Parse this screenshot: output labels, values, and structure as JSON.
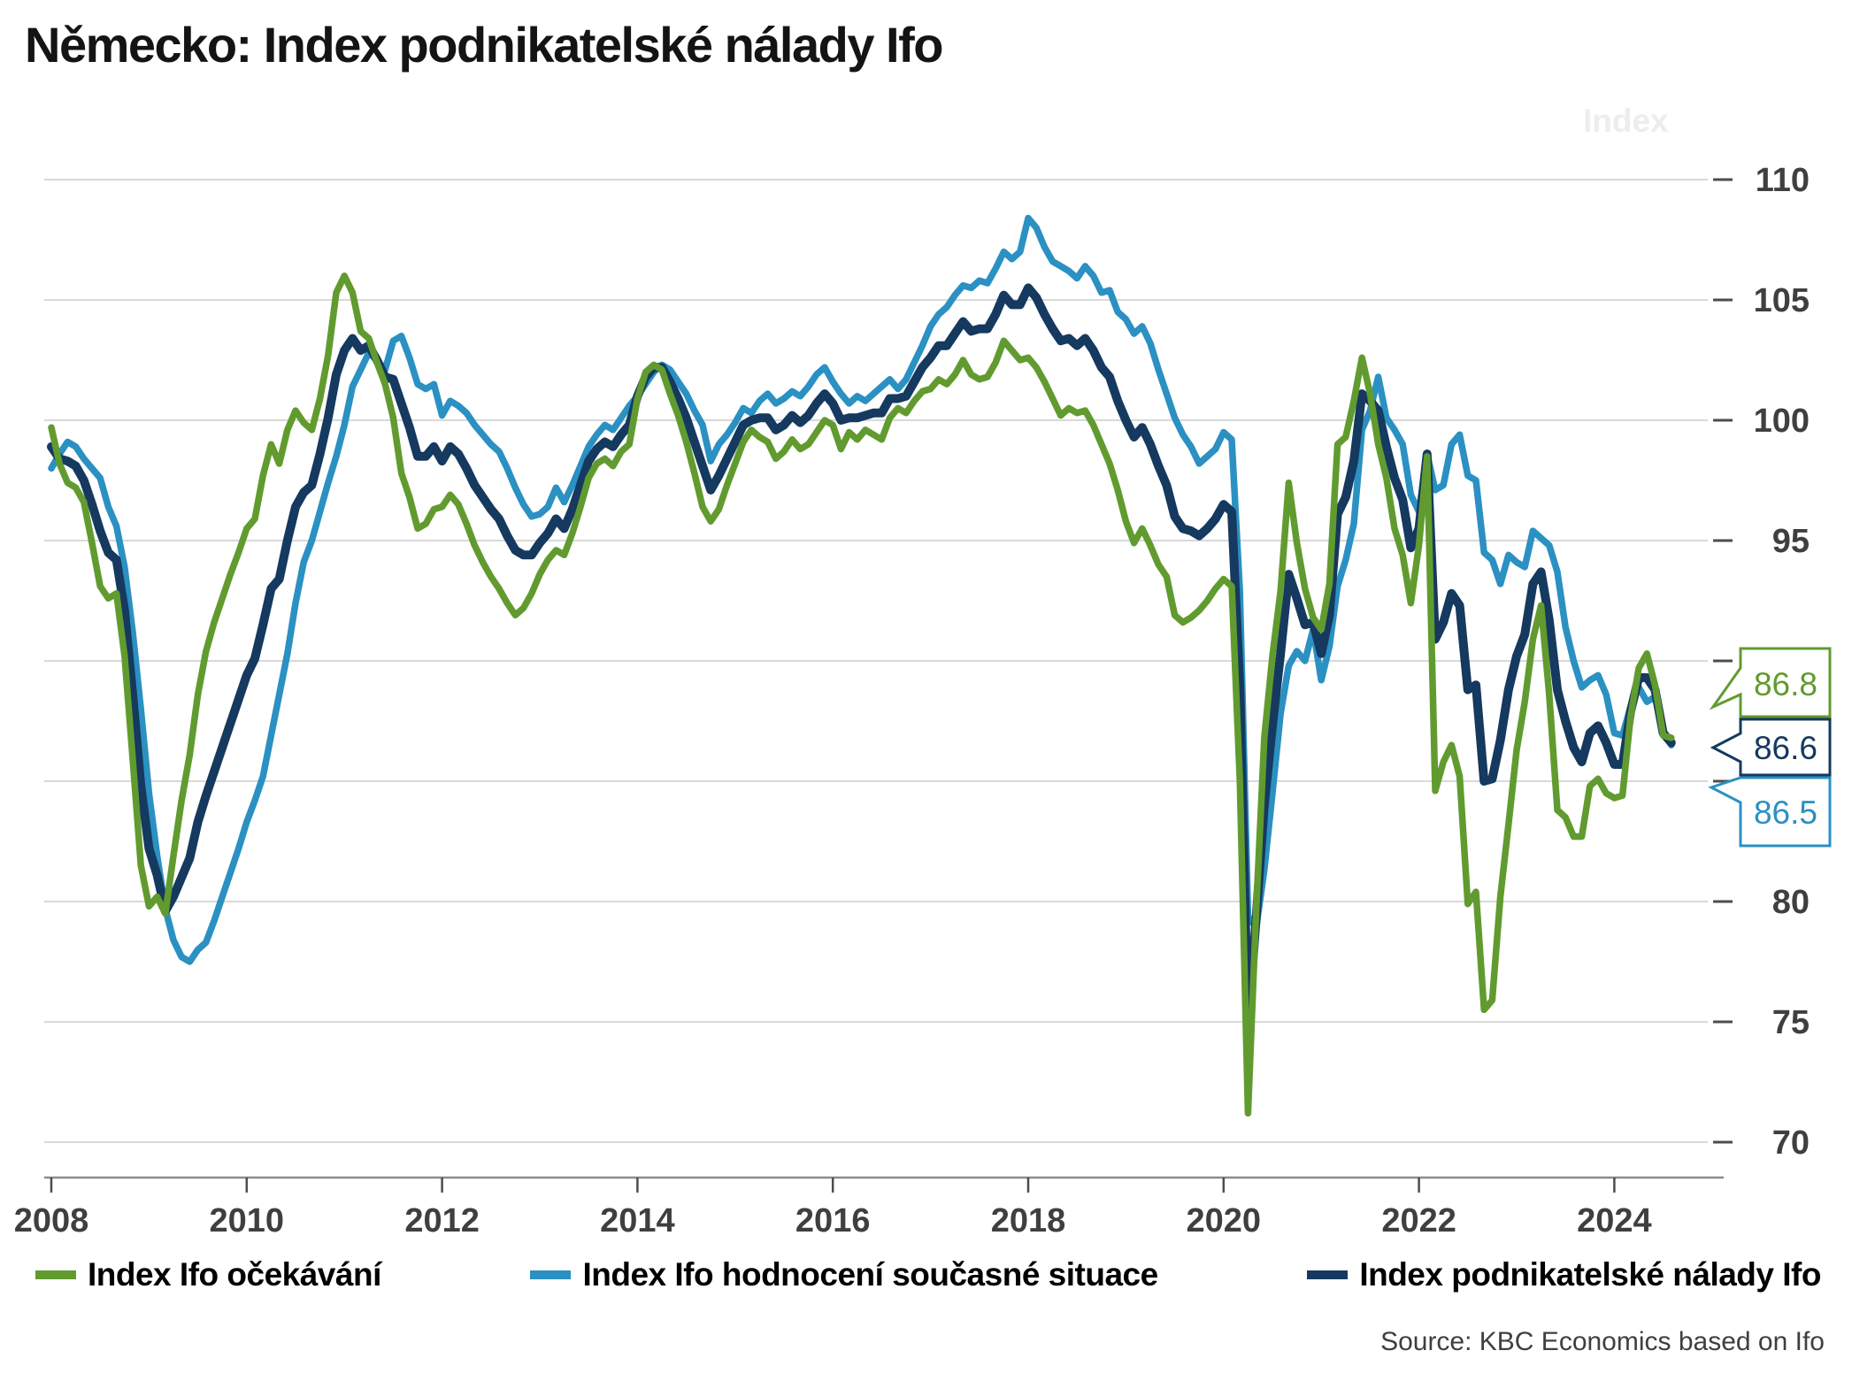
{
  "title": "Německo: Index podnikatelské nálady Ifo",
  "axis_unit_label": "Index",
  "source_note": "Source: KBC Economics based on Ifo",
  "colors": {
    "expectations": "#619b2f",
    "situation": "#2b90c2",
    "climate": "#15395f",
    "grid": "#d9d9d9",
    "axis": "#8c8c8c",
    "tick": "#4d4d4d",
    "label": "#3f3f3f",
    "title": "#141414",
    "unit": "#ededed"
  },
  "legend": {
    "items": [
      {
        "id": "expectations",
        "label": "Index Ifo očekávání"
      },
      {
        "id": "situation",
        "label": "Index Ifo hodnocení současné situace"
      },
      {
        "id": "climate",
        "label": "Index podnikatelské nálady Ifo"
      }
    ]
  },
  "end_labels": {
    "expectations": "86.8",
    "climate": "86.6",
    "situation": "86.5"
  },
  "chart_data": {
    "type": "line",
    "title": "Německo: Index podnikatelské nálady Ifo",
    "ylabel": "Index",
    "x_unit": "month",
    "x_start": "2008-01",
    "x_end": "2024-08",
    "x_ticks": [
      2008,
      2010,
      2012,
      2014,
      2016,
      2018,
      2020,
      2022,
      2024
    ],
    "ylim": [
      70,
      110
    ],
    "y_ticks": [
      70,
      75,
      80,
      85,
      90,
      95,
      100,
      105,
      110
    ],
    "grid": "horizontal",
    "legend_position": "bottom",
    "series": [
      {
        "id": "expectations",
        "name": "Index Ifo očekávání",
        "color": "#619b2f",
        "last_value": 86.8,
        "values": [
          99.7,
          98.2,
          97.4,
          97.2,
          96.6,
          94.9,
          93.1,
          92.6,
          92.8,
          90.2,
          85.9,
          81.5,
          79.8,
          80.2,
          79.5,
          81.9,
          84.2,
          86.1,
          88.6,
          90.4,
          91.6,
          92.6,
          93.6,
          94.5,
          95.5,
          95.9,
          97.7,
          99.0,
          98.2,
          99.6,
          100.4,
          99.9,
          99.6,
          100.9,
          102.7,
          105.3,
          106.0,
          105.3,
          103.7,
          103.4,
          102.4,
          101.5,
          100.1,
          97.8,
          96.8,
          95.5,
          95.7,
          96.3,
          96.4,
          96.9,
          96.5,
          95.7,
          94.8,
          94.1,
          93.5,
          93.0,
          92.4,
          91.9,
          92.2,
          92.8,
          93.6,
          94.2,
          94.6,
          94.4,
          95.3,
          96.4,
          97.6,
          98.2,
          98.4,
          98.1,
          98.7,
          99.0,
          100.9,
          102.0,
          102.3,
          102.1,
          101.1,
          100.2,
          99.1,
          97.8,
          96.4,
          95.8,
          96.3,
          97.3,
          98.2,
          99.1,
          99.6,
          99.3,
          99.1,
          98.4,
          98.7,
          99.2,
          98.8,
          99.0,
          99.5,
          100.0,
          99.8,
          98.8,
          99.5,
          99.2,
          99.6,
          99.4,
          99.2,
          100.1,
          100.5,
          100.3,
          100.8,
          101.2,
          101.3,
          101.7,
          101.5,
          101.9,
          102.5,
          101.9,
          101.7,
          101.8,
          102.4,
          103.3,
          102.9,
          102.5,
          102.6,
          102.2,
          101.6,
          100.9,
          100.2,
          100.5,
          100.3,
          100.4,
          99.8,
          99.0,
          98.2,
          97.1,
          95.8,
          94.9,
          95.5,
          94.8,
          94.0,
          93.5,
          91.9,
          91.6,
          91.8,
          92.1,
          92.5,
          93.0,
          93.4,
          93.1,
          85.0,
          71.2,
          79.6,
          86.8,
          90.2,
          92.9,
          97.4,
          94.9,
          93.0,
          91.8,
          91.3,
          93.2,
          99.0,
          99.3,
          100.8,
          102.6,
          101.1,
          99.0,
          97.6,
          95.5,
          94.4,
          92.4,
          94.8,
          98.5,
          84.6,
          85.8,
          86.5,
          85.2,
          79.9,
          80.4,
          75.5,
          75.9,
          80.2,
          83.2,
          86.3,
          88.3,
          90.9,
          92.3,
          88.6,
          83.8,
          83.5,
          82.7,
          82.7,
          84.8,
          85.1,
          84.5,
          84.3,
          84.4,
          87.7,
          89.7,
          90.3,
          89.0,
          86.9,
          86.8
        ]
      },
      {
        "id": "situation",
        "name": "Index Ifo hodnocení současné situace",
        "color": "#2b90c2",
        "last_value": 86.5,
        "values": [
          98.0,
          98.6,
          99.1,
          98.9,
          98.4,
          98.0,
          97.6,
          96.4,
          95.6,
          93.9,
          91.2,
          88.0,
          84.5,
          81.9,
          79.7,
          78.4,
          77.7,
          77.5,
          78.0,
          78.3,
          79.2,
          80.2,
          81.2,
          82.2,
          83.3,
          84.2,
          85.2,
          86.9,
          88.6,
          90.3,
          92.4,
          94.1,
          95.0,
          96.2,
          97.4,
          98.5,
          99.8,
          101.4,
          102.1,
          102.8,
          102.5,
          102.1,
          103.3,
          103.5,
          102.6,
          101.5,
          101.3,
          101.5,
          100.2,
          100.8,
          100.6,
          100.3,
          99.8,
          99.4,
          99.0,
          98.7,
          98.0,
          97.2,
          96.5,
          96.0,
          96.1,
          96.4,
          97.2,
          96.6,
          97.3,
          98.1,
          98.9,
          99.4,
          99.8,
          99.6,
          100.1,
          100.6,
          101.0,
          101.5,
          102.0,
          102.3,
          102.1,
          101.6,
          101.1,
          100.4,
          99.8,
          98.3,
          99.0,
          99.4,
          99.9,
          100.5,
          100.3,
          100.8,
          101.1,
          100.7,
          100.9,
          101.2,
          101.0,
          101.4,
          101.9,
          102.2,
          101.6,
          101.1,
          100.7,
          101.0,
          100.8,
          101.1,
          101.4,
          101.7,
          101.3,
          101.7,
          102.4,
          103.1,
          103.9,
          104.4,
          104.7,
          105.2,
          105.6,
          105.5,
          105.8,
          105.7,
          106.3,
          107.0,
          106.7,
          107.0,
          108.4,
          108.0,
          107.2,
          106.6,
          106.4,
          106.2,
          105.9,
          106.4,
          106.0,
          105.3,
          105.4,
          104.5,
          104.2,
          103.6,
          103.9,
          103.2,
          102.1,
          101.1,
          100.1,
          99.4,
          98.9,
          98.2,
          98.5,
          98.8,
          99.5,
          99.2,
          92.9,
          79.4,
          78.9,
          81.3,
          84.5,
          87.8,
          89.8,
          90.4,
          90.0,
          91.3,
          89.2,
          90.6,
          93.1,
          94.2,
          95.7,
          99.6,
          100.4,
          101.8,
          100.1,
          99.6,
          99.0,
          96.9,
          96.2,
          98.6,
          97.1,
          97.3,
          99.0,
          99.4,
          97.7,
          97.5,
          94.5,
          94.2,
          93.2,
          94.4,
          94.1,
          93.9,
          95.4,
          95.1,
          94.8,
          93.7,
          91.4,
          90.0,
          88.9,
          89.2,
          89.4,
          88.6,
          87.0,
          86.9,
          88.1,
          88.9,
          88.3,
          88.5,
          87.1,
          86.5
        ]
      },
      {
        "id": "climate",
        "name": "Index podnikatelské nálady Ifo",
        "color": "#15395f",
        "last_value": 86.6,
        "values": [
          98.9,
          98.4,
          98.3,
          98.1,
          97.5,
          96.5,
          95.4,
          94.5,
          94.2,
          92.1,
          88.6,
          84.8,
          82.2,
          81.1,
          79.6,
          80.2,
          81.0,
          81.8,
          83.3,
          84.4,
          85.4,
          86.4,
          87.4,
          88.4,
          89.4,
          90.1,
          91.5,
          93.0,
          93.4,
          95.0,
          96.4,
          97.0,
          97.3,
          98.6,
          100.1,
          101.9,
          102.9,
          103.4,
          102.9,
          103.1,
          102.5,
          101.8,
          101.7,
          100.7,
          99.7,
          98.5,
          98.5,
          98.9,
          98.3,
          98.9,
          98.6,
          98.0,
          97.3,
          96.8,
          96.3,
          95.9,
          95.2,
          94.6,
          94.4,
          94.4,
          94.9,
          95.3,
          95.9,
          95.5,
          96.3,
          97.3,
          98.3,
          98.8,
          99.1,
          98.9,
          99.4,
          99.8,
          101.0,
          101.8,
          102.2,
          102.2,
          101.6,
          100.9,
          100.1,
          99.1,
          98.1,
          97.1,
          97.7,
          98.4,
          99.1,
          99.8,
          100.0,
          100.1,
          100.1,
          99.6,
          99.8,
          100.2,
          99.9,
          100.2,
          100.7,
          101.1,
          100.7,
          100.0,
          100.1,
          100.1,
          100.2,
          100.3,
          100.3,
          100.9,
          100.9,
          101.0,
          101.6,
          102.2,
          102.6,
          103.1,
          103.1,
          103.6,
          104.1,
          103.7,
          103.8,
          103.8,
          104.4,
          105.2,
          104.8,
          104.8,
          105.5,
          105.1,
          104.4,
          103.8,
          103.3,
          103.4,
          103.1,
          103.4,
          102.9,
          102.2,
          101.8,
          100.8,
          100.0,
          99.3,
          99.7,
          99.0,
          98.1,
          97.3,
          96.0,
          95.5,
          95.4,
          95.2,
          95.5,
          95.9,
          96.5,
          96.2,
          88.9,
          74.8,
          79.3,
          84.0,
          87.3,
          90.3,
          93.6,
          92.6,
          91.5,
          91.6,
          90.3,
          91.9,
          96.1,
          96.8,
          98.3,
          101.1,
          100.8,
          100.4,
          98.9,
          97.6,
          96.7,
          94.7,
          95.5,
          98.6,
          90.9,
          91.6,
          92.8,
          92.3,
          88.8,
          89.0,
          85.0,
          85.1,
          86.7,
          88.8,
          90.2,
          91.1,
          93.2,
          93.7,
          91.7,
          88.8,
          87.5,
          86.4,
          85.8,
          87.0,
          87.3,
          86.6,
          85.7,
          85.7,
          87.9,
          89.3,
          89.3,
          88.8,
          87.0,
          86.6
        ]
      }
    ]
  }
}
